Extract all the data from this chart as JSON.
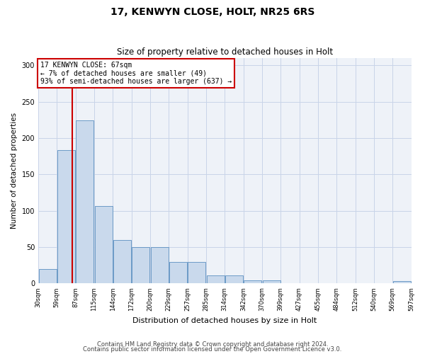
{
  "title1": "17, KENWYN CLOSE, HOLT, NR25 6RS",
  "title2": "Size of property relative to detached houses in Holt",
  "xlabel": "Distribution of detached houses by size in Holt",
  "ylabel": "Number of detached properties",
  "footer1": "Contains HM Land Registry data © Crown copyright and database right 2024.",
  "footer2": "Contains public sector information licensed under the Open Government Licence v3.0.",
  "annotation_line1": "17 KENWYN CLOSE: 67sqm",
  "annotation_line2": "← 7% of detached houses are smaller (49)",
  "annotation_line3": "93% of semi-detached houses are larger (637) →",
  "bar_indices": [
    0,
    1,
    2,
    3,
    4,
    5,
    6,
    7,
    8,
    9,
    10,
    11,
    12,
    13,
    14,
    15,
    16,
    17,
    18,
    19
  ],
  "bar_heights": [
    20,
    183,
    224,
    107,
    60,
    50,
    50,
    30,
    30,
    11,
    11,
    4,
    4,
    0,
    0,
    0,
    0,
    0,
    0,
    3
  ],
  "tick_labels": [
    "30sqm",
    "59sqm",
    "87sqm",
    "115sqm",
    "144sqm",
    "172sqm",
    "200sqm",
    "229sqm",
    "257sqm",
    "285sqm",
    "314sqm",
    "342sqm",
    "370sqm",
    "399sqm",
    "427sqm",
    "455sqm",
    "484sqm",
    "512sqm",
    "540sqm",
    "569sqm",
    "597sqm"
  ],
  "bar_color": "#c9d9ec",
  "bar_edge_color": "#5a8fc0",
  "vline_index": 1.33,
  "vline_color": "#cc0000",
  "annotation_box_color": "#cc0000",
  "ylim": [
    0,
    310
  ],
  "yticks": [
    0,
    50,
    100,
    150,
    200,
    250,
    300
  ],
  "grid_color": "#c8d4e8",
  "background_color": "#eef2f8",
  "title1_fontsize": 10,
  "title2_fontsize": 8.5,
  "ylabel_fontsize": 7.5,
  "xlabel_fontsize": 8,
  "xtick_fontsize": 6,
  "ytick_fontsize": 7,
  "annotation_fontsize": 7,
  "footer_fontsize": 6
}
